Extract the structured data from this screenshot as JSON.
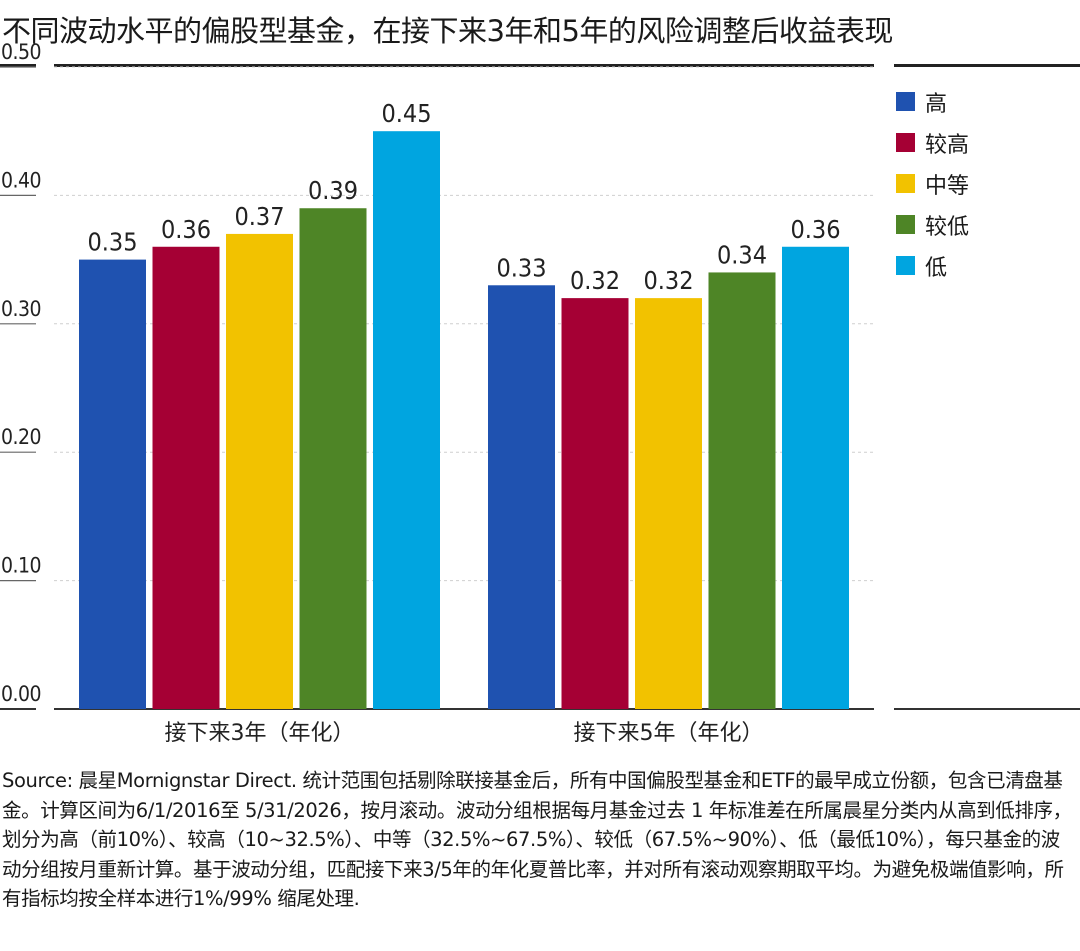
{
  "title": "不同波动水平的偏股型基金，在接下来3年和5年的风险调整后收益表现",
  "chart_data": {
    "type": "bar",
    "categories": [
      "接下来3年（年化）",
      "接下来5年（年化）"
    ],
    "series": [
      {
        "name": "高",
        "color": "#1f52b0",
        "values": [
          0.35,
          0.33
        ],
        "labels": [
          "0.35",
          "0.33"
        ]
      },
      {
        "name": "较高",
        "color": "#a50034",
        "values": [
          0.36,
          0.32
        ],
        "labels": [
          "0.36",
          "0.32"
        ]
      },
      {
        "name": "中等",
        "color": "#f2c200",
        "values": [
          0.37,
          0.32
        ],
        "labels": [
          "0.37",
          "0.32"
        ]
      },
      {
        "name": "较低",
        "color": "#4e8526",
        "values": [
          0.39,
          0.34
        ],
        "labels": [
          "0.39",
          "0.34"
        ]
      },
      {
        "name": "低",
        "color": "#00a5e0",
        "values": [
          0.45,
          0.36
        ],
        "labels": [
          "0.45",
          "0.36"
        ]
      }
    ],
    "ylim": [
      0,
      0.5
    ],
    "yticks": [
      "0.00",
      "0.10",
      "0.20",
      "0.30",
      "0.40",
      "0.50"
    ],
    "grid": true,
    "legend_position": "right"
  },
  "source": "Source: 晨星Mornignstar Direct. 统计范围包括剔除联接基金后，所有中国偏股型基金和ETF的最早成立份额，包含已清盘基金。计算区间为6/1/2016至 5/31/2026，按月滚动。波动分组根据每月基金过去 1 年标准差在所属晨星分类内从高到低排序，划分为高（前10%）、较高（10~32.5%）、中等（32.5%~67.5%）、较低（67.5%~90%）、低（最低10%），每只基金的波动分组按月重新计算。基于波动分组，匹配接下来3/5年的年化夏普比率，并对所有滚动观察期取平均。为避免极端值影响，所有指标均按全样本进行1%/99% 缩尾处理."
}
